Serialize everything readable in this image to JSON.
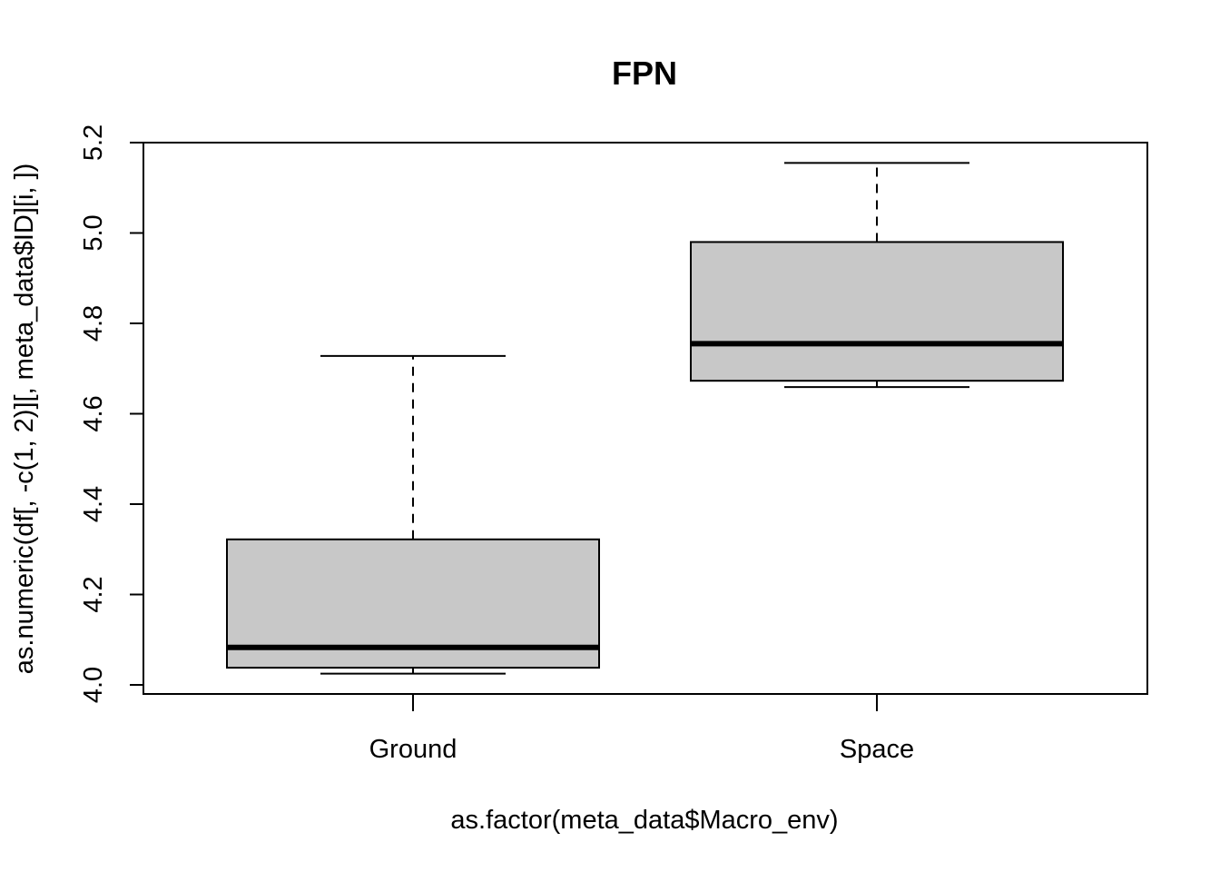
{
  "chart_data": {
    "type": "boxplot",
    "title": "FPN",
    "xlabel": "as.factor(meta_data$Macro_env)",
    "ylabel": "as.numeric(df[, -c(1, 2)][, meta_data$ID][i, ])",
    "ylim": [
      3.98,
      5.2
    ],
    "yticks": [
      4.0,
      4.2,
      4.4,
      4.6,
      4.8,
      5.0,
      5.2
    ],
    "ytick_labels": [
      "4.0",
      "4.2",
      "4.4",
      "4.6",
      "4.8",
      "5.0",
      "5.2"
    ],
    "categories": [
      "Ground",
      "Space"
    ],
    "boxes": [
      {
        "category": "Ground",
        "min": 4.025,
        "q1": 4.038,
        "median": 4.083,
        "q3": 4.322,
        "max": 4.728
      },
      {
        "category": "Space",
        "min": 4.659,
        "q1": 4.673,
        "median": 4.755,
        "q3": 4.98,
        "max": 5.155
      }
    ],
    "grid": false,
    "legend": "none",
    "colors": {
      "box_fill": "#c8c8c8",
      "line": "#000000"
    }
  }
}
